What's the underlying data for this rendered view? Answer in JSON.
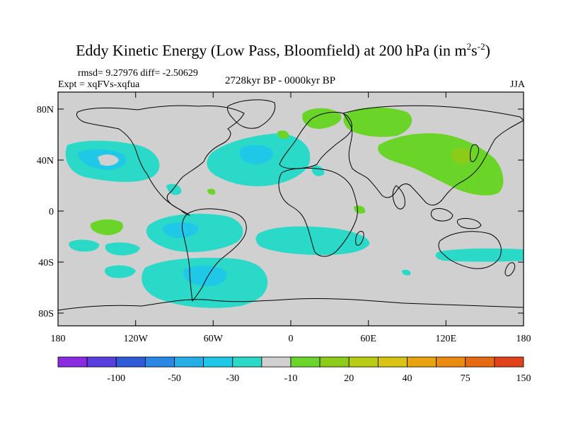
{
  "title": {
    "main": "Eddy Kinetic Energy (Low Pass, Bloomfield) at 200 hPa (in m",
    "sup1": "2",
    "mid": "s",
    "sup2": "-2",
    "end": ")"
  },
  "stats": "rmsd= 9.27976 diff= -2.50629",
  "experiment": "Expt = xqFVs-xqfua",
  "period": "2728kyr BP - 0000kyr BP",
  "season": "JJA",
  "map": {
    "lat_ticks": [
      "80N",
      "40N",
      "0",
      "40S",
      "80S"
    ],
    "lon_ticks": [
      "180",
      "120W",
      "60W",
      "0",
      "60E",
      "120E",
      "180"
    ]
  },
  "colorbar": {
    "colors": [
      "#8a2be2",
      "#5a3ee0",
      "#2f5ad8",
      "#2b87e6",
      "#26aee8",
      "#1ec8e6",
      "#2bd9c8",
      "#d0d0d0",
      "#6ad428",
      "#8ccc18",
      "#b8cc14",
      "#d9c414",
      "#e8a40e",
      "#ea8a0e",
      "#e56a10",
      "#e0421a"
    ],
    "labels": [
      "-100",
      "-50",
      "-30",
      "-10",
      "20",
      "40",
      "75",
      "150"
    ]
  },
  "colors": {
    "ocean_land": "#d0d0d0",
    "teal": "#2bd9c8",
    "cyan": "#1ec8e6",
    "green": "#6ad428",
    "yellow_green": "#8ccc18"
  }
}
